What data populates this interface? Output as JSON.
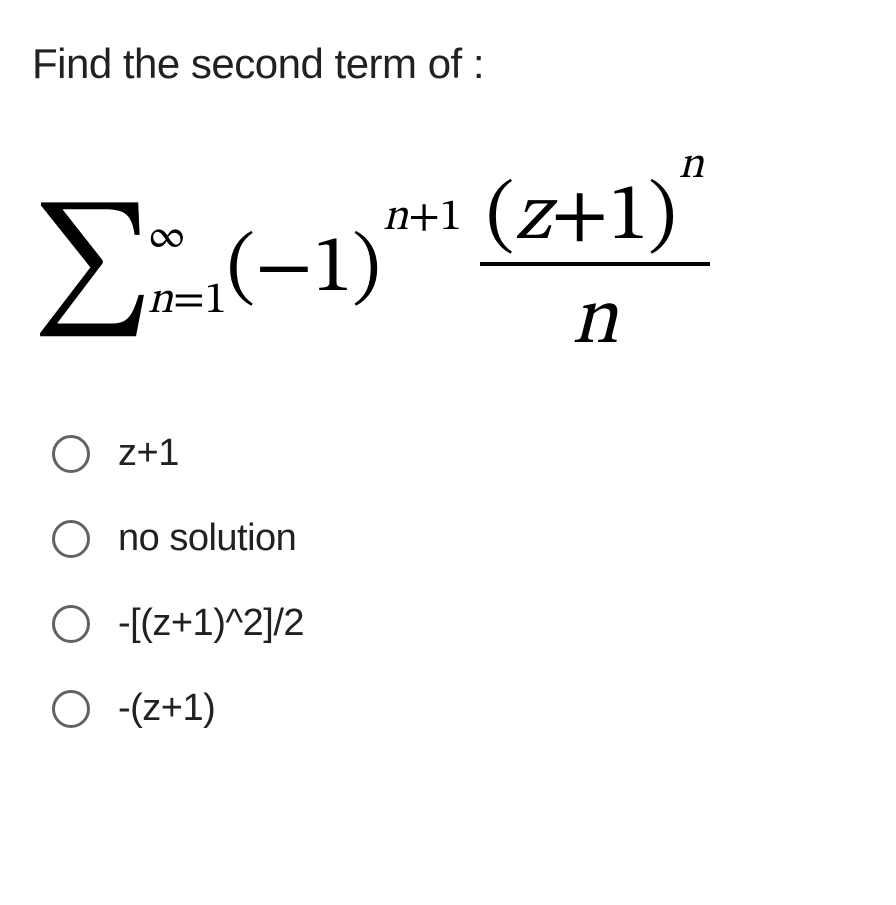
{
  "question": "Find the second term of :",
  "formula": {
    "sigma_upper": "∞",
    "sigma_lower_lhs": "n",
    "sigma_lower_eq": "=",
    "sigma_lower_rhs": "1",
    "base_open": "(",
    "base_neg": "−",
    "base_one": "1",
    "base_close": ")",
    "exp1_var": "n",
    "exp1_plus": "+",
    "exp1_num": "1",
    "num_open": "(",
    "num_var": "z",
    "num_plus": "+",
    "num_one": "1",
    "num_close": ")",
    "num_exp": "n",
    "den": "n"
  },
  "options": [
    {
      "label": "z+1"
    },
    {
      "label": "no solution"
    },
    {
      "label": "-[(z+1)^2]/2"
    },
    {
      "label": "-(z+1)"
    }
  ]
}
